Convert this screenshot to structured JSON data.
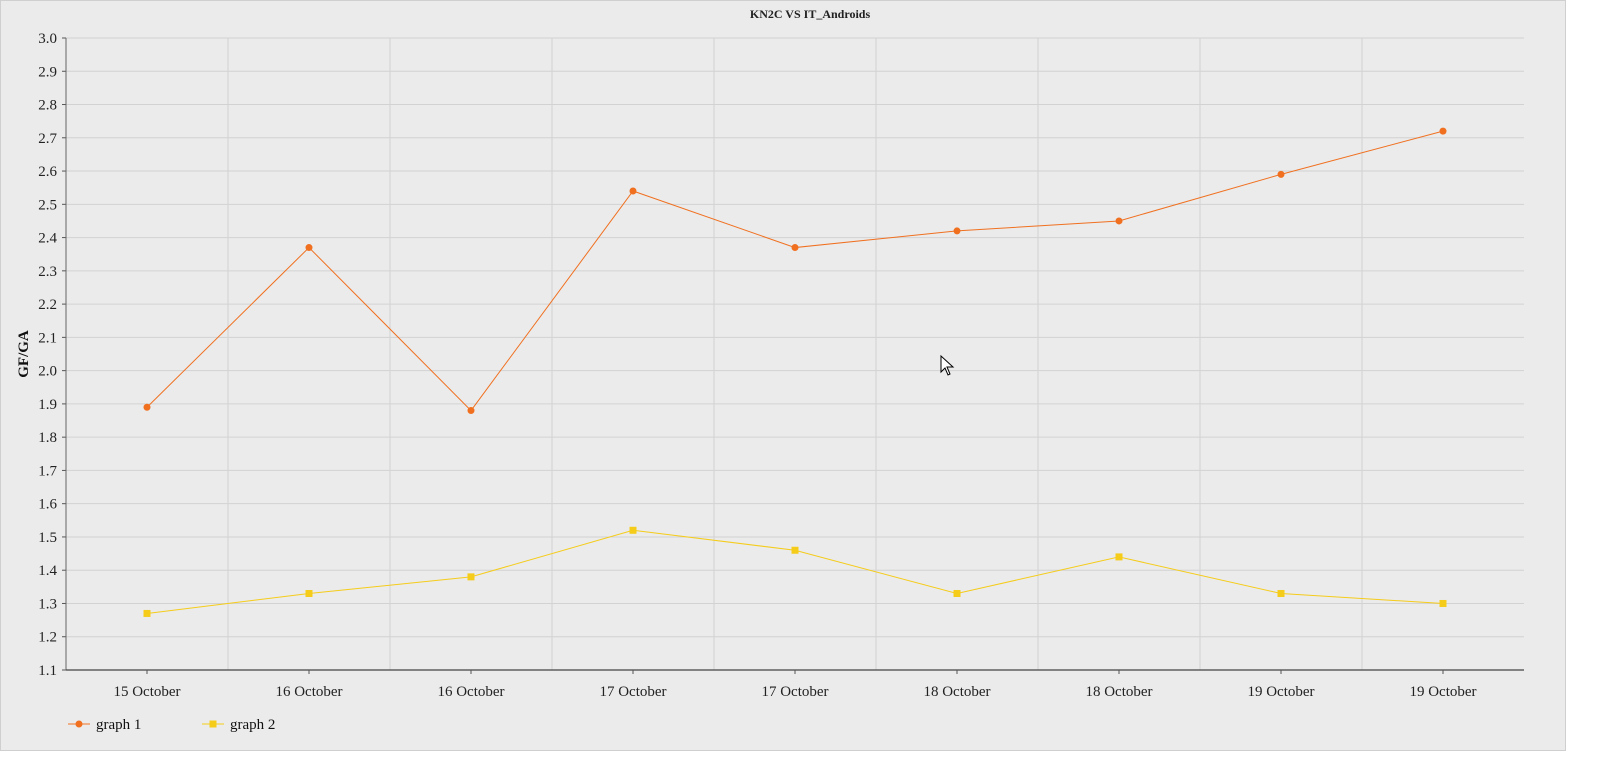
{
  "chart_data": {
    "type": "line",
    "title": "KN2C VS IT_Androids",
    "xlabel": "",
    "ylabel": "GF/GA",
    "ylim": [
      1.1,
      3.0
    ],
    "yticks": [
      "3.0",
      "2.9",
      "2.8",
      "2.7",
      "2.6",
      "2.5",
      "2.4",
      "2.3",
      "2.2",
      "2.1",
      "2.0",
      "1.9",
      "1.8",
      "1.7",
      "1.6",
      "1.5",
      "1.4",
      "1.3",
      "1.2",
      "1.1"
    ],
    "categories": [
      "15 October",
      "16 October",
      "16 October",
      "17 October",
      "17 October",
      "18 October",
      "18 October",
      "19 October",
      "19 October"
    ],
    "grid": true,
    "legend_position": "bottom-left",
    "series": [
      {
        "name": "graph 1",
        "color": "#f07020",
        "marker": "circle",
        "values": [
          1.89,
          2.37,
          1.88,
          2.54,
          2.37,
          2.42,
          2.45,
          2.59,
          2.72
        ]
      },
      {
        "name": "graph 2",
        "color": "#f5cc1a",
        "marker": "square",
        "values": [
          1.27,
          1.33,
          1.38,
          1.52,
          1.46,
          1.33,
          1.44,
          1.33,
          1.3
        ]
      }
    ]
  }
}
